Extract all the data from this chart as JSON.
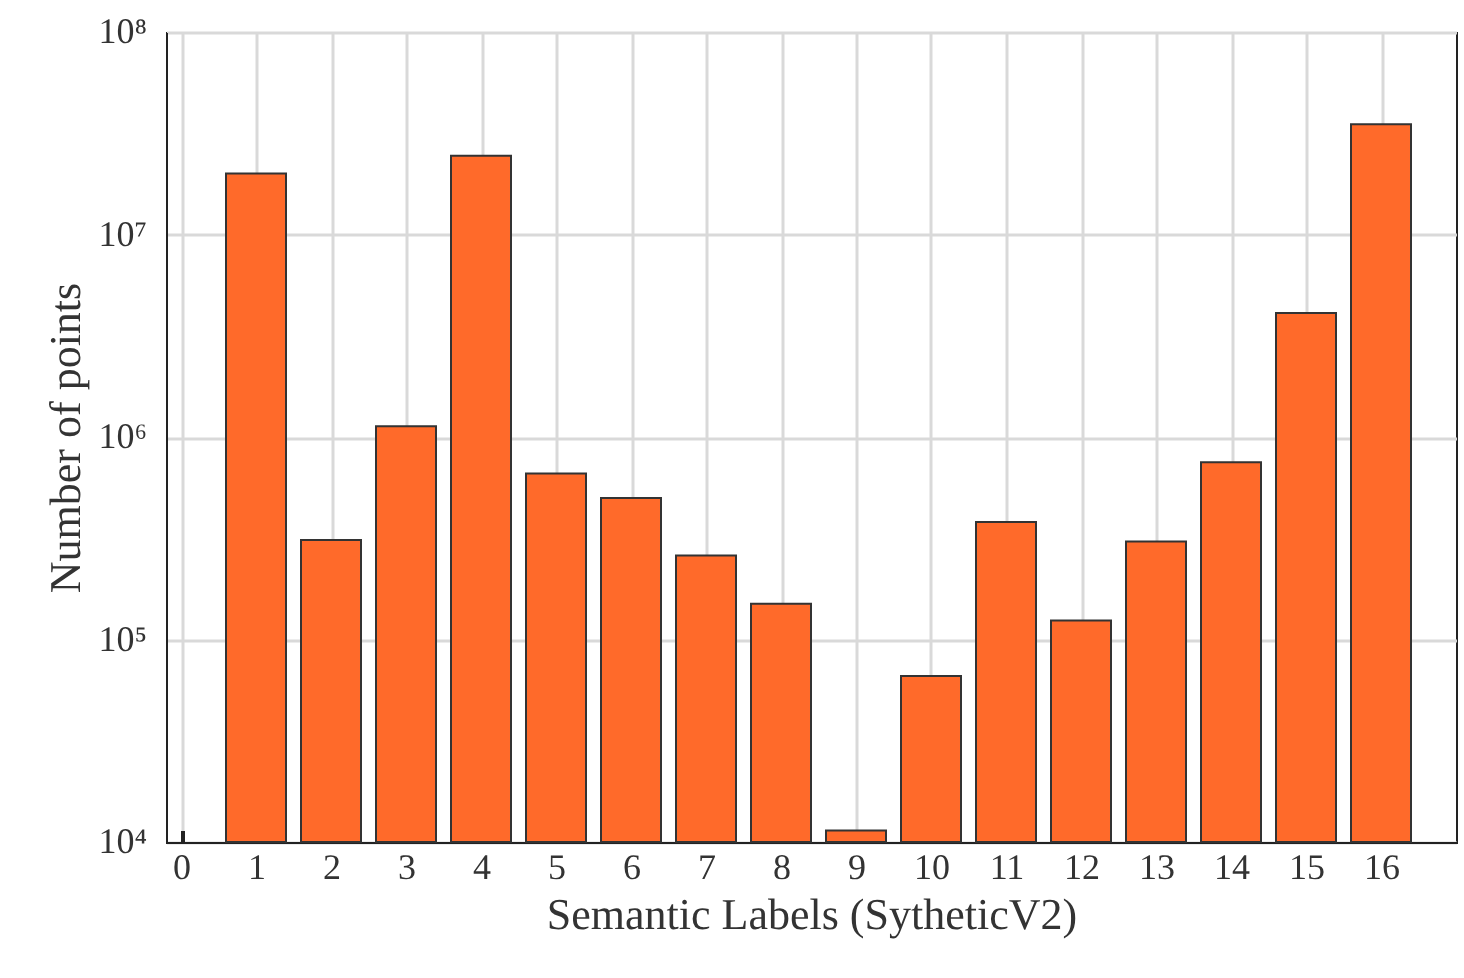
{
  "chart_data": {
    "type": "bar",
    "xlabel": "Semantic Labels (SytheticV2)",
    "ylabel": "Number of points",
    "x": [
      1,
      2,
      3,
      4,
      5,
      6,
      7,
      8,
      9,
      10,
      11,
      12,
      13,
      14,
      15,
      16
    ],
    "values": [
      20000000,
      310000,
      1130000,
      24500000,
      660000,
      500000,
      260000,
      150000,
      11400,
      66000,
      380000,
      124000,
      305000,
      750000,
      4100000,
      35000000
    ],
    "color": "#ff6a2a",
    "log": "y",
    "grid": true,
    "xlim": [
      -0.2,
      17
    ],
    "xticks": [
      0,
      1,
      2,
      3,
      4,
      5,
      6,
      7,
      8,
      9,
      10,
      11,
      12,
      13,
      14,
      15,
      16
    ],
    "ylim": [
      10000,
      100000000
    ],
    "yticks": [
      {
        "value": 10000,
        "label": "10⁴"
      },
      {
        "value": 100000,
        "label": "10⁵"
      },
      {
        "value": 1000000,
        "label": "10⁶"
      },
      {
        "value": 10000000,
        "label": "10⁷"
      },
      {
        "value": 100000000,
        "label": "10⁸"
      }
    ]
  }
}
